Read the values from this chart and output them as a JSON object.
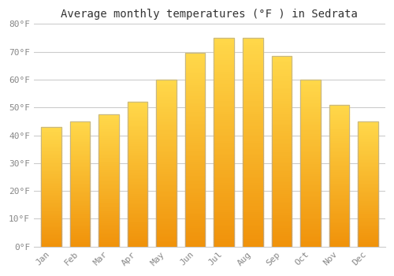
{
  "title": "Average monthly temperatures (°F ) in Sedrata",
  "months": [
    "Jan",
    "Feb",
    "Mar",
    "Apr",
    "May",
    "Jun",
    "Jul",
    "Aug",
    "Sep",
    "Oct",
    "Nov",
    "Dec"
  ],
  "values": [
    43,
    45,
    47.5,
    52,
    60,
    69.5,
    75,
    75,
    68.5,
    60,
    51,
    45
  ],
  "bar_color_bottom": "#F0920A",
  "bar_color_top": "#FFD84A",
  "bar_edge_color": "#AAAAAA",
  "background_color": "#FFFFFF",
  "grid_color": "#CCCCCC",
  "ylim": [
    0,
    80
  ],
  "yticks": [
    0,
    10,
    20,
    30,
    40,
    50,
    60,
    70,
    80
  ],
  "ytick_labels": [
    "0°F",
    "10°F",
    "20°F",
    "30°F",
    "40°F",
    "50°F",
    "60°F",
    "70°F",
    "80°F"
  ],
  "title_fontsize": 10,
  "tick_fontsize": 8,
  "tick_color": "#888888",
  "title_color": "#333333"
}
